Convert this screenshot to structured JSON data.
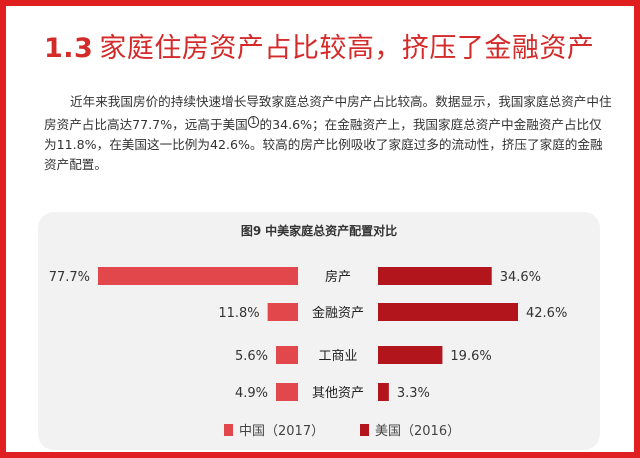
{
  "section": {
    "number": "1.3",
    "title": "家庭住房资产占比较高，挤压了金融资产"
  },
  "paragraph": {
    "part1": "近年来我国房价的持续快速增长导致家庭总资产中房产占比较高。数据显示，我国家庭总资产中住房资产占比高达77.7%，远高于美国",
    "footnote": "1",
    "part2": "的34.6%；在金融资产上，我国家庭总资产中金融资产占比仅为11.8%，在美国这一比例为42.6%。较高的房产比例吸收了家庭过多的流动性，挤压了家庭的金融资产配置。"
  },
  "chart_data": {
    "type": "bar",
    "title_num": "图9",
    "title": "中美家庭总资产配置对比",
    "categories": [
      "房产",
      "金融资产",
      "工商业",
      "其他资产"
    ],
    "series": [
      {
        "name": "中国（2017）",
        "values": [
          77.7,
          11.8,
          5.6,
          4.9
        ],
        "labels": [
          "77.7%",
          "11.8%",
          "5.6%",
          "4.9%"
        ],
        "color": "#e2474b"
      },
      {
        "name": "美国（2016）",
        "values": [
          34.6,
          42.6,
          19.6,
          3.3
        ],
        "labels": [
          "34.6%",
          "42.6%",
          "19.6%",
          "3.3%"
        ],
        "color": "#b3151d"
      }
    ],
    "legend_position": "bottom-left",
    "grid": false
  },
  "colors": {
    "border": "#e02020",
    "heading": "#d42a2a",
    "china": "#e2474b",
    "usa": "#b3151d",
    "card": "#f2f2f2"
  }
}
